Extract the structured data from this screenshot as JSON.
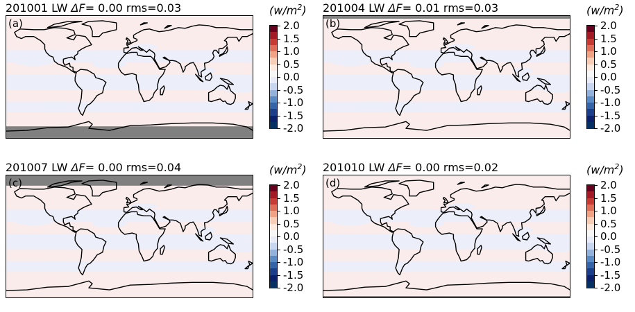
{
  "colorbar": {
    "unit_prefix": "(w/m",
    "unit_sup": "2",
    "unit_suffix": ")",
    "ticks": [
      "2.0",
      "1.5",
      "1.0",
      "0.5",
      "0.0",
      "-0.5",
      "-1.0",
      "-1.5",
      "-2.0"
    ],
    "colors": [
      "#67001f",
      "#a11a26",
      "#c53a32",
      "#de6e58",
      "#f0a285",
      "#f8cdb5",
      "#fde9dd",
      "#f7f7f7",
      "#e9ecf7",
      "#c7d5ee",
      "#92b1db",
      "#5a8ac4",
      "#3463a8",
      "#1b3d8a",
      "#0b1f6b",
      "#053061"
    ]
  },
  "panels": [
    {
      "id": "a",
      "date": "201001",
      "band": "LW",
      "delta_label": "ΔF",
      "delta_value": "= 0.00",
      "rms": "rms=0.03",
      "label": "(a)",
      "missing": "south"
    },
    {
      "id": "b",
      "date": "201004",
      "band": "LW",
      "delta_label": "ΔF",
      "delta_value": "= 0.01",
      "rms": "rms=0.03",
      "label": "(b)",
      "missing": "north-thin"
    },
    {
      "id": "c",
      "date": "201007",
      "band": "LW",
      "delta_label": "ΔF",
      "delta_value": "= 0.00",
      "rms": "rms=0.04",
      "label": "(c)",
      "missing": "north"
    },
    {
      "id": "d",
      "date": "201010",
      "band": "LW",
      "delta_label": "ΔF",
      "delta_value": "= 0.00",
      "rms": "rms=0.02",
      "label": "(d)",
      "missing": "south-thin"
    }
  ],
  "map_colors": {
    "positive": "#fbecec",
    "negative": "#eceef9",
    "missing": "#808080",
    "coast": "#000000"
  }
}
